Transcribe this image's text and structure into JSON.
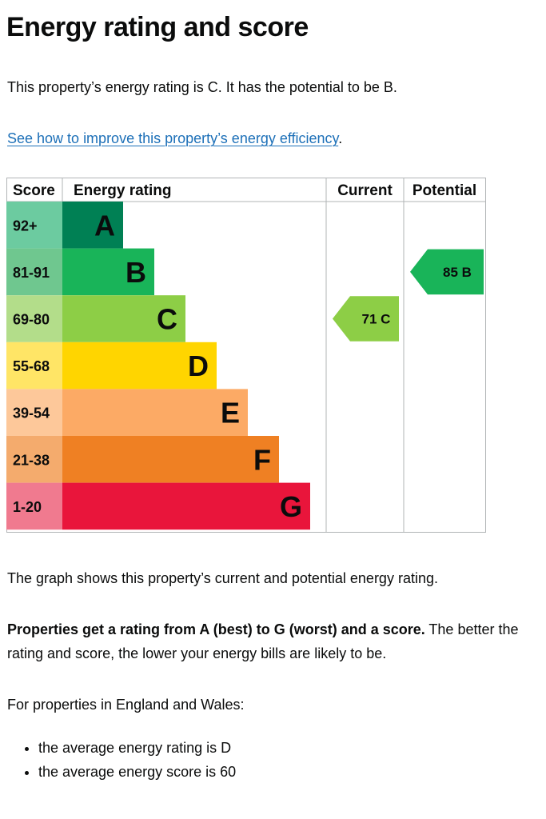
{
  "page": {
    "title": "Energy rating and score",
    "intro": "This property’s energy rating is C. It has the potential to be B.",
    "improve_link": "See how to improve this property’s energy efficiency",
    "improve_link_suffix": ".",
    "graph_caption": "The graph shows this property’s current and potential energy rating.",
    "ratings_bold": "Properties get a rating from A (best) to G (worst) and a score.",
    "ratings_rest": " The better the rating and score, the lower your energy bills are likely to be.",
    "region_intro": "For properties in England and Wales:",
    "bullets": [
      "the average energy rating is D",
      "the average energy score is 60"
    ]
  },
  "chart_data": {
    "type": "bar",
    "headers": {
      "score": "Score",
      "rating": "Energy rating",
      "current": "Current",
      "potential": "Potential"
    },
    "bands": [
      {
        "score": "92+",
        "letter": "A",
        "color": "#008054",
        "score_bg": "#6ccba0"
      },
      {
        "score": "81-91",
        "letter": "B",
        "color": "#19b459",
        "score_bg": "#6fc78f"
      },
      {
        "score": "69-80",
        "letter": "C",
        "color": "#8dce46",
        "score_bg": "#b3dd8a"
      },
      {
        "score": "55-68",
        "letter": "D",
        "color": "#ffd500",
        "score_bg": "#ffe566"
      },
      {
        "score": "39-54",
        "letter": "E",
        "color": "#fcaa65",
        "score_bg": "#fdc89a"
      },
      {
        "score": "21-38",
        "letter": "F",
        "color": "#ef8023",
        "score_bg": "#f4ab6d"
      },
      {
        "score": "1-20",
        "letter": "G",
        "color": "#e9153b",
        "score_bg": "#f07a8f"
      }
    ],
    "current": {
      "score": 71,
      "letter": "C",
      "label": "71 C",
      "color": "#8dce46"
    },
    "potential": {
      "score": 85,
      "letter": "B",
      "label": "85 B",
      "color": "#19b459"
    }
  }
}
